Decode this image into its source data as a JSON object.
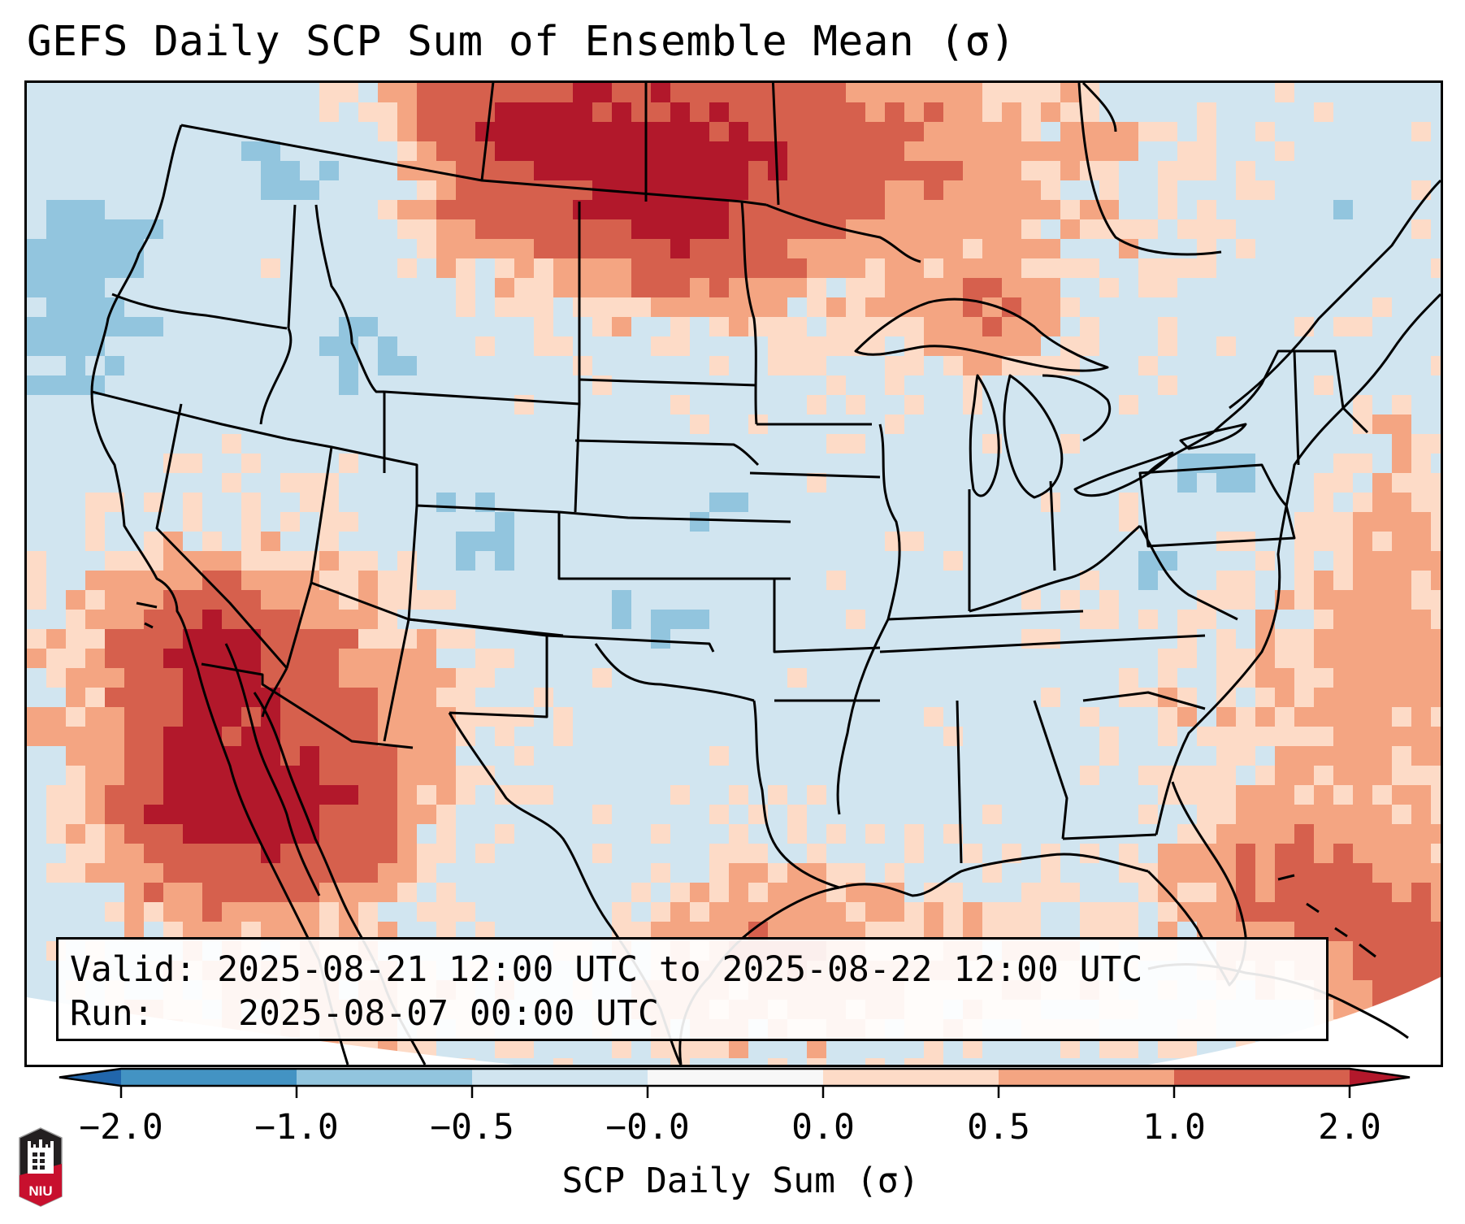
{
  "title": "GEFS Daily SCP Sum of Ensemble Mean (σ)",
  "info_box": {
    "valid_label": "Valid:",
    "valid_value": "2025-08-21 12:00 UTC to 2025-08-22 12:00 UTC",
    "run_label": "Run:",
    "run_value": "2025-08-07 00:00 UTC"
  },
  "colorbar": {
    "label": "SCP Daily Sum (σ)",
    "ticks": [
      "−2.0",
      "−1.0",
      "−0.5",
      "−0.0",
      "0.0",
      "0.5",
      "1.0",
      "2.0"
    ],
    "extend": "both",
    "colors": {
      "under": "#2166ac",
      "bins": [
        "#4393c3",
        "#92c5de",
        "#d1e5f0",
        "#f7f7f7",
        "#fddbc7",
        "#f4a582",
        "#d6604d"
      ],
      "over": "#b2182b"
    }
  },
  "map": {
    "region": "Continental United States with southern Canada, northern Mexico, Gulf of Mexico and western Atlantic",
    "background_color": "#d1e5f0",
    "features": [
      {
        "area": "Southern Alberta / Saskatchewan / Manitoba",
        "category": "1.0 to 2.0 (max near 2.0)"
      },
      {
        "area": "Baja California / Gulf of California / southern Arizona",
        "category": "1.0 to above 2.0"
      },
      {
        "area": "Southern California coast",
        "category": "above 2.0"
      },
      {
        "area": "Bahamas / Florida Straits / Caribbean",
        "category": "0.5 to 1.0"
      },
      {
        "area": "Western Ocean offshore Pacific Northwest",
        "category": "-1.0 to -0.5"
      },
      {
        "area": "Pennsylvania / New Jersey / Virginia",
        "category": "-1.0 to -0.5"
      },
      {
        "area": "Colorado / Oklahoma panhandle / Kansas",
        "category": "-1.0 to -0.5"
      }
    ]
  },
  "logo": {
    "text": "NIU",
    "name": "Northern Illinois University"
  }
}
